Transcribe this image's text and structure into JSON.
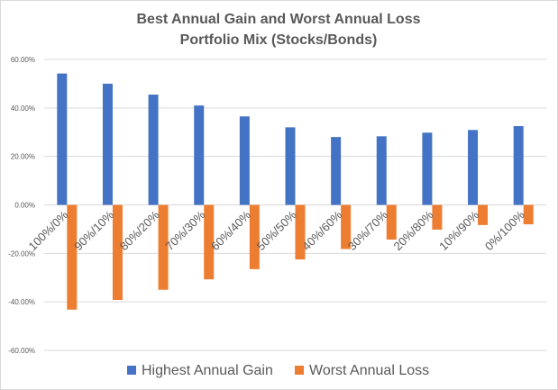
{
  "chart_data": {
    "type": "bar",
    "title": "Best Annual Gain and Worst Annual Loss",
    "subtitle": "Portfolio Mix (Stocks/Bonds)",
    "categories": [
      "100%/0%",
      "90%/10%",
      "80%/20%",
      "70%/30%",
      "60%/40%",
      "50%/50%",
      "40%/60%",
      "30%/70%",
      "20%/80%",
      "10%/90%",
      "0%/100%"
    ],
    "series": [
      {
        "name": "Highest Annual Gain",
        "color": "#4472c4",
        "values": [
          54.2,
          50.0,
          45.5,
          41.0,
          36.5,
          32.0,
          28.0,
          28.3,
          29.8,
          30.9,
          32.5
        ]
      },
      {
        "name": "Worst Annual Loss",
        "color": "#ed7d31",
        "values": [
          -43.2,
          -39.2,
          -35.0,
          -30.7,
          -26.5,
          -22.5,
          -18.2,
          -14.3,
          -10.2,
          -8.3,
          -8.0
        ]
      }
    ],
    "ylim": [
      -60,
      60
    ],
    "yticks": [
      60,
      40,
      20,
      0,
      -20,
      -40,
      -60
    ],
    "ytick_labels": [
      "60.00%",
      "40.00%",
      "20.00%",
      "0.00%",
      "-20.00%",
      "-40.00%",
      "-60.00%"
    ],
    "grid": true,
    "legend": "bottom"
  }
}
